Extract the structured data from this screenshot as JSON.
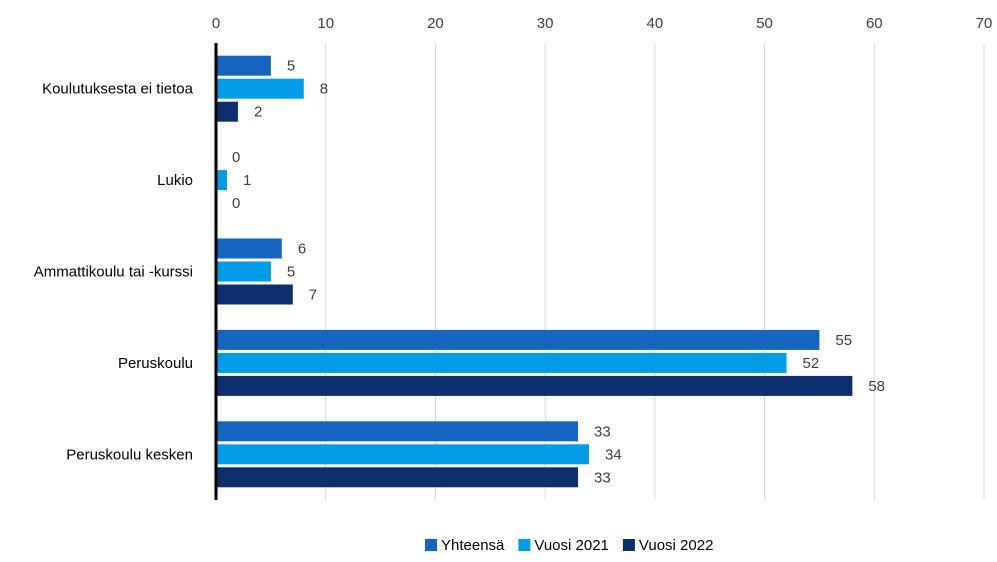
{
  "chart_data": {
    "type": "bar",
    "orientation": "horizontal",
    "categories": [
      "Koulutuksesta ei tietoa",
      "Lukio",
      "Ammattikoulu tai -kurssi",
      "Peruskoulu",
      "Peruskoulu kesken"
    ],
    "series": [
      {
        "name": "Yhteensä",
        "values": [
          5,
          0,
          6,
          55,
          33
        ],
        "color": "#1565C0"
      },
      {
        "name": "Vuosi 2021",
        "values": [
          8,
          1,
          5,
          52,
          34
        ],
        "color": "#039BE5"
      },
      {
        "name": "Vuosi 2022",
        "values": [
          2,
          0,
          7,
          58,
          33
        ],
        "color": "#0D2F6E"
      }
    ],
    "value_axis": {
      "ticks": [
        "0",
        "10",
        "20",
        "30",
        "40",
        "50",
        "60",
        "70"
      ],
      "range": [
        0,
        70
      ],
      "position": "top"
    },
    "gridlines": true,
    "legend": "bottom",
    "data_labels": true,
    "title": "",
    "xlabel": "",
    "ylabel": ""
  }
}
